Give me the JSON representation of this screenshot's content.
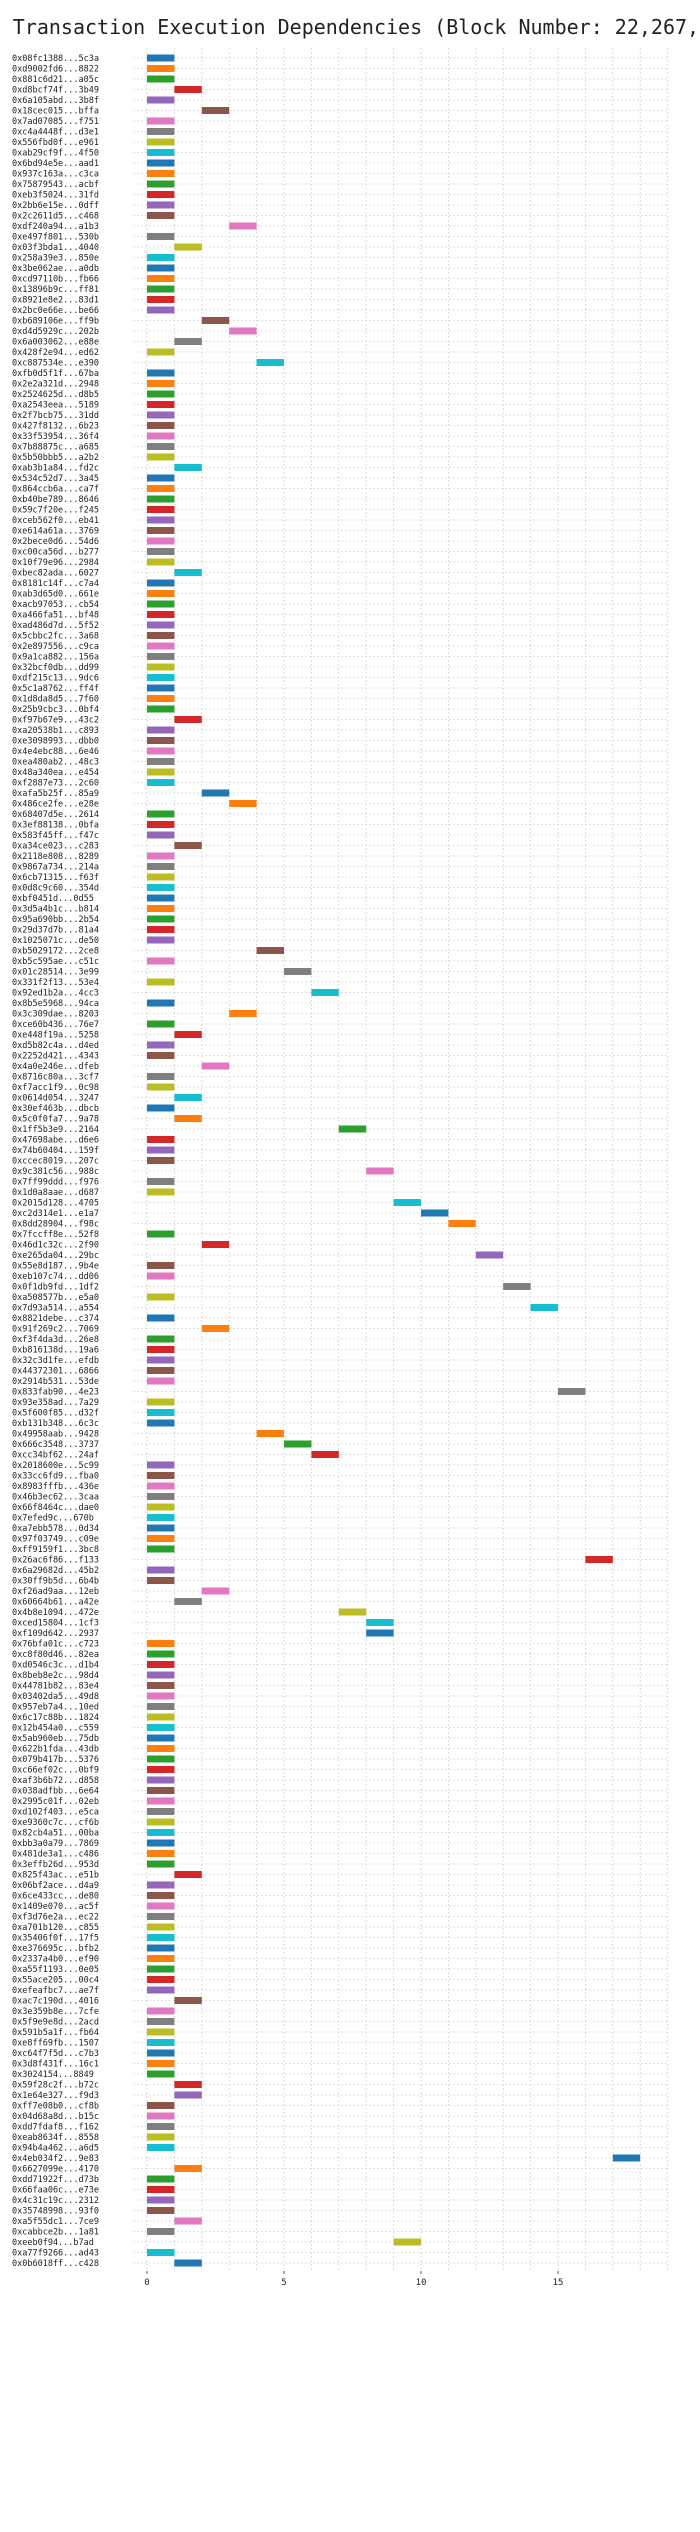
{
  "chart_data": {
    "type": "gantt",
    "title": "Transaction Execution Dependencies (Block Number: 22,267,946)",
    "xlabel": "",
    "ylabel": "",
    "xlim": [
      -0.5,
      19
    ],
    "xticks": [
      0,
      5,
      10,
      15
    ],
    "grid": true,
    "bar_duration": 1,
    "palette": [
      "#1f77b4",
      "#ff7f0e",
      "#2ca02c",
      "#d62728",
      "#9467bd",
      "#8c564b",
      "#e377c2",
      "#7f7f7f",
      "#bcbd22",
      "#17becf"
    ],
    "tasks": [
      {
        "label": "0x08fc1388...5c3a",
        "start": 0
      },
      {
        "label": "0xd9002fd6...8822",
        "start": 0
      },
      {
        "label": "0x881c6d21...a05c",
        "start": 0
      },
      {
        "label": "0xd8bcf74f...3b49",
        "start": 1
      },
      {
        "label": "0x6a105abd...3b8f",
        "start": 0
      },
      {
        "label": "0x18cec015...bffa",
        "start": 2
      },
      {
        "label": "0x7ad07085...f751",
        "start": 0
      },
      {
        "label": "0xc4a4448f...d3e1",
        "start": 0
      },
      {
        "label": "0x556fbd0f...e961",
        "start": 0
      },
      {
        "label": "0xab29cf9f...4f50",
        "start": 0
      },
      {
        "label": "0x6bd94e5e...aad1",
        "start": 0
      },
      {
        "label": "0x937c163a...c3ca",
        "start": 0
      },
      {
        "label": "0x75879543...acbf",
        "start": 0
      },
      {
        "label": "0xeb3f5024...31fd",
        "start": 0
      },
      {
        "label": "0x2bb6e15e...0dff",
        "start": 0
      },
      {
        "label": "0x2c2611d5...c468",
        "start": 0
      },
      {
        "label": "0xdf240a94...a1b3",
        "start": 3
      },
      {
        "label": "0xe497f801...530b",
        "start": 0
      },
      {
        "label": "0x03f3bda1...4040",
        "start": 1
      },
      {
        "label": "0x258a39e3...850e",
        "start": 0
      },
      {
        "label": "0x3be062ae...a0db",
        "start": 0
      },
      {
        "label": "0xcd97110b...fb66",
        "start": 0
      },
      {
        "label": "0x13896b9c...ff81",
        "start": 0
      },
      {
        "label": "0x8921e8e2...83d1",
        "start": 0
      },
      {
        "label": "0x2bc0e66e...be66",
        "start": 0
      },
      {
        "label": "0xb689106e...ff9b",
        "start": 2
      },
      {
        "label": "0xd4d5929c...202b",
        "start": 3
      },
      {
        "label": "0x6a003062...e88e",
        "start": 1
      },
      {
        "label": "0x428f2e94...ed62",
        "start": 0
      },
      {
        "label": "0xc887534e...e390",
        "start": 4
      },
      {
        "label": "0xfb0d5f1f...67ba",
        "start": 0
      },
      {
        "label": "0x2e2a321d...2948",
        "start": 0
      },
      {
        "label": "0x2524625d...d8b5",
        "start": 0
      },
      {
        "label": "0xa2543eea...5189",
        "start": 0
      },
      {
        "label": "0x2f7bcb75...31dd",
        "start": 0
      },
      {
        "label": "0x427f8132...6b23",
        "start": 0
      },
      {
        "label": "0x33f53954...36f4",
        "start": 0
      },
      {
        "label": "0x7b88875c...a685",
        "start": 0
      },
      {
        "label": "0x5b50bbb5...a2b2",
        "start": 0
      },
      {
        "label": "0xab3b1a84...fd2c",
        "start": 1
      },
      {
        "label": "0x534c52d7...3a45",
        "start": 0
      },
      {
        "label": "0x864ccb6a...ca7f",
        "start": 0
      },
      {
        "label": "0xb40be789...8646",
        "start": 0
      },
      {
        "label": "0x59c7f20e...f245",
        "start": 0
      },
      {
        "label": "0xceb562f0...eb41",
        "start": 0
      },
      {
        "label": "0xe614a61a...3769",
        "start": 0
      },
      {
        "label": "0x2bece0d6...54d6",
        "start": 0
      },
      {
        "label": "0xc00ca56d...b277",
        "start": 0
      },
      {
        "label": "0x10f79e96...2984",
        "start": 0
      },
      {
        "label": "0xbec82ada...6027",
        "start": 1
      },
      {
        "label": "0x8181c14f...c7a4",
        "start": 0
      },
      {
        "label": "0xab3d65d0...661e",
        "start": 0
      },
      {
        "label": "0xacb97053...cb54",
        "start": 0
      },
      {
        "label": "0xa466fa51...bf48",
        "start": 0
      },
      {
        "label": "0xad486d7d...5f52",
        "start": 0
      },
      {
        "label": "0x5cbbc2fc...3a68",
        "start": 0
      },
      {
        "label": "0x2e897556...c9ca",
        "start": 0
      },
      {
        "label": "0x9a1ca882...156a",
        "start": 0
      },
      {
        "label": "0x32bcf0db...dd99",
        "start": 0
      },
      {
        "label": "0xdf215c13...9dc6",
        "start": 0
      },
      {
        "label": "0x5c1a8762...ff4f",
        "start": 0
      },
      {
        "label": "0x1d8da8d5...7f60",
        "start": 0
      },
      {
        "label": "0x25b9cbc3...0bf4",
        "start": 0
      },
      {
        "label": "0xf97b67e9...43c2",
        "start": 1
      },
      {
        "label": "0xa20538b1...c893",
        "start": 0
      },
      {
        "label": "0xe3098993...dbb0",
        "start": 0
      },
      {
        "label": "0x4e4ebc88...6e46",
        "start": 0
      },
      {
        "label": "0xea480ab2...48c3",
        "start": 0
      },
      {
        "label": "0x48a340ea...e454",
        "start": 0
      },
      {
        "label": "0xf2887e73...2c60",
        "start": 0
      },
      {
        "label": "0xafa5b25f...85a9",
        "start": 2
      },
      {
        "label": "0x486ce2fe...e28e",
        "start": 3
      },
      {
        "label": "0x68407d5e...2614",
        "start": 0
      },
      {
        "label": "0x3ef88138...0bfa",
        "start": 0
      },
      {
        "label": "0x583f45ff...f47c",
        "start": 0
      },
      {
        "label": "0xa34ce023...c283",
        "start": 1
      },
      {
        "label": "0x2118e808...8289",
        "start": 0
      },
      {
        "label": "0x9867a734...214a",
        "start": 0
      },
      {
        "label": "0x6cb71315...f63f",
        "start": 0
      },
      {
        "label": "0x0d8c9c60...354d",
        "start": 0
      },
      {
        "label": "0xbf0451d...0d55",
        "start": 0
      },
      {
        "label": "0x3d5a4b1c...b814",
        "start": 0
      },
      {
        "label": "0x95a690bb...2b54",
        "start": 0
      },
      {
        "label": "0x29d37d7b...81a4",
        "start": 0
      },
      {
        "label": "0x1025071c...de50",
        "start": 0
      },
      {
        "label": "0xb5029172...2ce8",
        "start": 4
      },
      {
        "label": "0xb5c595ae...c51c",
        "start": 0
      },
      {
        "label": "0x01c28514...3e99",
        "start": 5
      },
      {
        "label": "0x331f2f13...53e4",
        "start": 0
      },
      {
        "label": "0x92ed1b2a...4cc3",
        "start": 6
      },
      {
        "label": "0x8b5e5968...94ca",
        "start": 0
      },
      {
        "label": "0x3c309dae...8203",
        "start": 3
      },
      {
        "label": "0xce60b436...76e7",
        "start": 0
      },
      {
        "label": "0xe448f19a...5258",
        "start": 1
      },
      {
        "label": "0xd5b82c4a...d4ed",
        "start": 0
      },
      {
        "label": "0x2252d421...4343",
        "start": 0
      },
      {
        "label": "0x4a0e246e...dfeb",
        "start": 2
      },
      {
        "label": "0x8716c80a...3cf7",
        "start": 0
      },
      {
        "label": "0xf7acc1f9...0c98",
        "start": 0
      },
      {
        "label": "0x0614d054...3247",
        "start": 1
      },
      {
        "label": "0x30ef463b...dbcb",
        "start": 0
      },
      {
        "label": "0x5c0f0fa7...9a78",
        "start": 1
      },
      {
        "label": "0x1ff5b3e9...2164",
        "start": 7
      },
      {
        "label": "0x47698abe...d6e6",
        "start": 0
      },
      {
        "label": "0x74b60404...159f",
        "start": 0
      },
      {
        "label": "0xccec8019...207c",
        "start": 0
      },
      {
        "label": "0x9c381c56...988c",
        "start": 8
      },
      {
        "label": "0x7ff99ddd...f976",
        "start": 0
      },
      {
        "label": "0x1d0a8aae...d687",
        "start": 0
      },
      {
        "label": "0x2015d128...4705",
        "start": 9
      },
      {
        "label": "0xc2d314e1...e1a7",
        "start": 10
      },
      {
        "label": "0x8dd28904...f98c",
        "start": 11
      },
      {
        "label": "0x7fccff8e...52f8",
        "start": 0
      },
      {
        "label": "0x46d1c32c...2f90",
        "start": 2
      },
      {
        "label": "0xe265da04...29bc",
        "start": 12
      },
      {
        "label": "0x55e8d187...9b4e",
        "start": 0
      },
      {
        "label": "0xeb107c74...dd06",
        "start": 0
      },
      {
        "label": "0x0f1db9fd...1df2",
        "start": 13
      },
      {
        "label": "0xa508577b...e5a0",
        "start": 0
      },
      {
        "label": "0x7d93a514...a554",
        "start": 14
      },
      {
        "label": "0x8821debe...c374",
        "start": 0
      },
      {
        "label": "0x91f269c2...7069",
        "start": 2
      },
      {
        "label": "0xf3f4da3d...26e8",
        "start": 0
      },
      {
        "label": "0xb816138d...19a6",
        "start": 0
      },
      {
        "label": "0x32c3d1fe...efdb",
        "start": 0
      },
      {
        "label": "0x44372301...6866",
        "start": 0
      },
      {
        "label": "0x2914b531...53de",
        "start": 0
      },
      {
        "label": "0x833fab90...4e23",
        "start": 15
      },
      {
        "label": "0x93e358ad...7a29",
        "start": 0
      },
      {
        "label": "0x5f600f85...d32f",
        "start": 0
      },
      {
        "label": "0xb131b348...6c3c",
        "start": 0
      },
      {
        "label": "0x49958aab...9428",
        "start": 4
      },
      {
        "label": "0x666c3548...3737",
        "start": 5
      },
      {
        "label": "0xcc34bf62...24af",
        "start": 6
      },
      {
        "label": "0x2018600e...5c99",
        "start": 0
      },
      {
        "label": "0x33cc6fd9...fba0",
        "start": 0
      },
      {
        "label": "0x8983fffb...436e",
        "start": 0
      },
      {
        "label": "0x46b3ec62...3caa",
        "start": 0
      },
      {
        "label": "0x66f8464c...dae0",
        "start": 0
      },
      {
        "label": "0x7efed9c...670b",
        "start": 0
      },
      {
        "label": "0xa7ebb578...0d34",
        "start": 0
      },
      {
        "label": "0x97f03749...c09e",
        "start": 0
      },
      {
        "label": "0xff9159f1...3bc8",
        "start": 0
      },
      {
        "label": "0x26ac6f86...f133",
        "start": 16
      },
      {
        "label": "0x6a29682d...45b2",
        "start": 0
      },
      {
        "label": "0x30ff9b5d...6b4b",
        "start": 0
      },
      {
        "label": "0xf26ad9aa...12eb",
        "start": 2
      },
      {
        "label": "0x60664b61...a42e",
        "start": 1
      },
      {
        "label": "0x4b8e1094...472e",
        "start": 7
      },
      {
        "label": "0xced15804...1cf3",
        "start": 8
      },
      {
        "label": "0xf109d642...2937",
        "start": 8
      },
      {
        "label": "0x76bfa01c...c723",
        "start": 0
      },
      {
        "label": "0xc8f80d46...82ea",
        "start": 0
      },
      {
        "label": "0xd0546c3c...d1b4",
        "start": 0
      },
      {
        "label": "0x8beb8e2c...98d4",
        "start": 0
      },
      {
        "label": "0x44781b82...83e4",
        "start": 0
      },
      {
        "label": "0x03402da5...49d8",
        "start": 0
      },
      {
        "label": "0x957eb7a4...10ed",
        "start": 0
      },
      {
        "label": "0x6c17c88b...1824",
        "start": 0
      },
      {
        "label": "0x12b454a0...c559",
        "start": 0
      },
      {
        "label": "0x5ab960eb...75db",
        "start": 0
      },
      {
        "label": "0x622b1fda...43db",
        "start": 0
      },
      {
        "label": "0x079b417b...5376",
        "start": 0
      },
      {
        "label": "0xc66ef02c...0bf9",
        "start": 0
      },
      {
        "label": "0xaf3b6b72...d858",
        "start": 0
      },
      {
        "label": "0x038adfbb...6e64",
        "start": 0
      },
      {
        "label": "0x2995c01f...02eb",
        "start": 0
      },
      {
        "label": "0xd102f403...e5ca",
        "start": 0
      },
      {
        "label": "0xe9360c7c...cf6b",
        "start": 0
      },
      {
        "label": "0x82cb4a51...00ba",
        "start": 0
      },
      {
        "label": "0xbb3a0a79...7869",
        "start": 0
      },
      {
        "label": "0x481de3a1...c486",
        "start": 0
      },
      {
        "label": "0x3effb26d...953d",
        "start": 0
      },
      {
        "label": "0x825f43ac...e51b",
        "start": 1
      },
      {
        "label": "0x06bf2ace...d4a9",
        "start": 0
      },
      {
        "label": "0x6ce433cc...de80",
        "start": 0
      },
      {
        "label": "0x1409e070...ac5f",
        "start": 0
      },
      {
        "label": "0xf3d76e2a...ec22",
        "start": 0
      },
      {
        "label": "0xa701b120...c855",
        "start": 0
      },
      {
        "label": "0x35406f0f...17f5",
        "start": 0
      },
      {
        "label": "0xe376695c...bfb2",
        "start": 0
      },
      {
        "label": "0x2337a4b0...ef90",
        "start": 0
      },
      {
        "label": "0xa55f1193...0e05",
        "start": 0
      },
      {
        "label": "0x55ace205...00c4",
        "start": 0
      },
      {
        "label": "0xefeafbc7...ae7f",
        "start": 0
      },
      {
        "label": "0xac7c190d...4016",
        "start": 1
      },
      {
        "label": "0x3e359b8e...7cfe",
        "start": 0
      },
      {
        "label": "0x5f9e9e8d...2acd",
        "start": 0
      },
      {
        "label": "0x591b5a1f...fb64",
        "start": 0
      },
      {
        "label": "0xe8ff69fb...1507",
        "start": 0
      },
      {
        "label": "0xc64f7f5d...c7b3",
        "start": 0
      },
      {
        "label": "0x3d8f431f...16c1",
        "start": 0
      },
      {
        "label": "0x3024154...8849",
        "start": 0
      },
      {
        "label": "0x59f28c2f...b72c",
        "start": 1
      },
      {
        "label": "0x1e64e327...f9d3",
        "start": 1
      },
      {
        "label": "0xff7e08b0...cf8b",
        "start": 0
      },
      {
        "label": "0x04d68a8d...b15c",
        "start": 0
      },
      {
        "label": "0xdd7fdaf8...f162",
        "start": 0
      },
      {
        "label": "0xeab8634f...8558",
        "start": 0
      },
      {
        "label": "0x94b4a462...a6d5",
        "start": 0
      },
      {
        "label": "0x4eb034f2...9e83",
        "start": 17
      },
      {
        "label": "0x6627099e...4170",
        "start": 1
      },
      {
        "label": "0xdd71922f...d73b",
        "start": 0
      },
      {
        "label": "0x66faa06c...e73e",
        "start": 0
      },
      {
        "label": "0x4c31c19c...2312",
        "start": 0
      },
      {
        "label": "0x35748998...93f0",
        "start": 0
      },
      {
        "label": "0xa5f55dc1...7ce9",
        "start": 1
      },
      {
        "label": "0xcabbce2b...1a81",
        "start": 0
      },
      {
        "label": "0xeeb0f94...b7ad",
        "start": 9
      },
      {
        "label": "0xa77f9266...ad43",
        "start": 0
      },
      {
        "label": "0x0b6018ff...c428",
        "start": 1
      }
    ]
  }
}
